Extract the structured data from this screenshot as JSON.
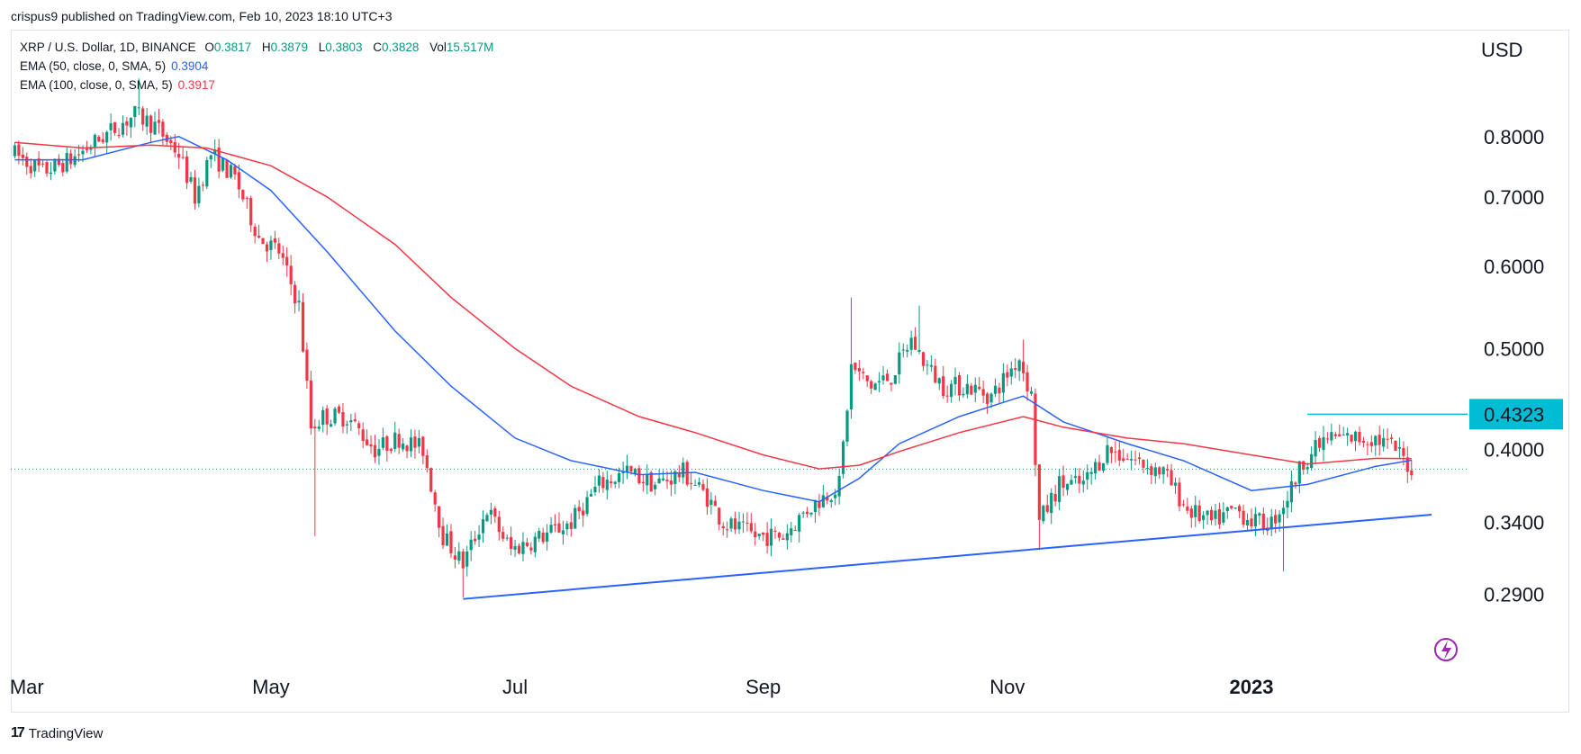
{
  "publisher_line": "crispus9 published on TradingView.com, Feb 10, 2023 18:10 UTC+3",
  "legend": {
    "symbol": "XRP / U.S. Dollar, 1D, BINANCE",
    "ohlc": [
      {
        "k": "O",
        "v": "0.3817"
      },
      {
        "k": "H",
        "v": "0.3879"
      },
      {
        "k": "L",
        "v": "0.3803"
      },
      {
        "k": "C",
        "v": "0.3828"
      },
      {
        "k": "Vol",
        "v": "15.517M"
      }
    ],
    "ema50_label": "EMA (50, close, 0, SMA, 5)",
    "ema50_value": "0.3904",
    "ema100_label": "EMA (100, close, 0, SMA, 5)",
    "ema100_value": "0.3917"
  },
  "axis_unit": "USD",
  "footer": {
    "logo_text": "TradingView",
    "logo_icon": "tradingview-logo-icon"
  },
  "colors": {
    "up": "#089981",
    "down": "#f23645",
    "ema50": "#2962ff",
    "ema100": "#f23645",
    "trendline": "#2962ff",
    "resistance": "#00bcd4",
    "price_tag": "#00bcd4"
  },
  "chart_data": {
    "type": "candlestick",
    "title": "XRP / U.S. Dollar, 1D, BINANCE",
    "scale": "log",
    "ylim": [
      0.245,
      1.0
    ],
    "xlim": [
      "2022-02-25",
      "2023-02-24"
    ],
    "y_ticks": [
      {
        "value": 0.8,
        "label": "0.8000"
      },
      {
        "value": 0.7,
        "label": "0.7000"
      },
      {
        "value": 0.6,
        "label": "0.6000"
      },
      {
        "value": 0.5,
        "label": "0.5000"
      },
      {
        "value": 0.4,
        "label": "0.4000"
      },
      {
        "value": 0.34,
        "label": "0.3400"
      },
      {
        "value": 0.29,
        "label": "0.2900"
      }
    ],
    "x_ticks": [
      {
        "date": "2022-03-01",
        "label": "Mar",
        "bold": false
      },
      {
        "date": "2022-05-01",
        "label": "May",
        "bold": false
      },
      {
        "date": "2022-07-01",
        "label": "Jul",
        "bold": false
      },
      {
        "date": "2022-09-01",
        "label": "Sep",
        "bold": false
      },
      {
        "date": "2022-11-01",
        "label": "Nov",
        "bold": false
      },
      {
        "date": "2023-01-01",
        "label": "2023",
        "bold": true
      }
    ],
    "last_price": 0.3828,
    "price_tag": {
      "value": 0.4323,
      "label": "0.4323"
    },
    "resistance_line": {
      "start": "2023-01-15",
      "end": "2023-02-24",
      "value": 0.4323
    },
    "trendline": {
      "start_date": "2022-06-18",
      "start_value": 0.287,
      "end_date": "2023-02-15",
      "end_value": 0.346
    },
    "price_path": [
      [
        "2022-02-26",
        0.77
      ],
      [
        "2022-03-05",
        0.74
      ],
      [
        "2022-03-12",
        0.76
      ],
      [
        "2022-03-20",
        0.8
      ],
      [
        "2022-03-28",
        0.84
      ],
      [
        "2022-04-02",
        0.82
      ],
      [
        "2022-04-08",
        0.77
      ],
      [
        "2022-04-12",
        0.7
      ],
      [
        "2022-04-16",
        0.77
      ],
      [
        "2022-04-22",
        0.73
      ],
      [
        "2022-04-28",
        0.64
      ],
      [
        "2022-05-03",
        0.62
      ],
      [
        "2022-05-08",
        0.55
      ],
      [
        "2022-05-11",
        0.42
      ],
      [
        "2022-05-14",
        0.43
      ],
      [
        "2022-05-20",
        0.43
      ],
      [
        "2022-05-27",
        0.4
      ],
      [
        "2022-06-02",
        0.41
      ],
      [
        "2022-06-08",
        0.4
      ],
      [
        "2022-06-13",
        0.33
      ],
      [
        "2022-06-18",
        0.31
      ],
      [
        "2022-06-24",
        0.35
      ],
      [
        "2022-06-30",
        0.32
      ],
      [
        "2022-07-08",
        0.33
      ],
      [
        "2022-07-15",
        0.34
      ],
      [
        "2022-07-22",
        0.37
      ],
      [
        "2022-07-29",
        0.38
      ],
      [
        "2022-08-05",
        0.37
      ],
      [
        "2022-08-12",
        0.38
      ],
      [
        "2022-08-18",
        0.36
      ],
      [
        "2022-08-22",
        0.34
      ],
      [
        "2022-08-30",
        0.33
      ],
      [
        "2022-09-06",
        0.33
      ],
      [
        "2022-09-12",
        0.35
      ],
      [
        "2022-09-20",
        0.37
      ],
      [
        "2022-09-23",
        0.48
      ],
      [
        "2022-09-28",
        0.46
      ],
      [
        "2022-10-03",
        0.47
      ],
      [
        "2022-10-08",
        0.51
      ],
      [
        "2022-10-12",
        0.48
      ],
      [
        "2022-10-16",
        0.46
      ],
      [
        "2022-10-22",
        0.46
      ],
      [
        "2022-10-28",
        0.45
      ],
      [
        "2022-11-04",
        0.49
      ],
      [
        "2022-11-07",
        0.45
      ],
      [
        "2022-11-09",
        0.34
      ],
      [
        "2022-11-14",
        0.37
      ],
      [
        "2022-11-20",
        0.37
      ],
      [
        "2022-11-26",
        0.4
      ],
      [
        "2022-12-03",
        0.39
      ],
      [
        "2022-12-10",
        0.38
      ],
      [
        "2022-12-16",
        0.35
      ],
      [
        "2022-12-22",
        0.34
      ],
      [
        "2022-12-28",
        0.35
      ],
      [
        "2023-01-02",
        0.34
      ],
      [
        "2023-01-06",
        0.34
      ],
      [
        "2023-01-10",
        0.36
      ],
      [
        "2023-01-14",
        0.39
      ],
      [
        "2023-01-20",
        0.41
      ],
      [
        "2023-01-26",
        0.41
      ],
      [
        "2023-02-01",
        0.41
      ],
      [
        "2023-02-06",
        0.4
      ],
      [
        "2023-02-10",
        0.383
      ]
    ],
    "series": [
      {
        "name": "EMA (50, close, 0, SMA, 5)",
        "points": [
          [
            "2022-02-26",
            0.76
          ],
          [
            "2022-03-15",
            0.76
          ],
          [
            "2022-04-01",
            0.79
          ],
          [
            "2022-04-08",
            0.8
          ],
          [
            "2022-04-20",
            0.76
          ],
          [
            "2022-05-01",
            0.71
          ],
          [
            "2022-05-15",
            0.62
          ],
          [
            "2022-06-01",
            0.52
          ],
          [
            "2022-06-15",
            0.46
          ],
          [
            "2022-07-01",
            0.41
          ],
          [
            "2022-07-15",
            0.39
          ],
          [
            "2022-08-01",
            0.378
          ],
          [
            "2022-08-15",
            0.38
          ],
          [
            "2022-09-01",
            0.365
          ],
          [
            "2022-09-15",
            0.356
          ],
          [
            "2022-09-25",
            0.375
          ],
          [
            "2022-10-05",
            0.405
          ],
          [
            "2022-10-20",
            0.43
          ],
          [
            "2022-11-01",
            0.445
          ],
          [
            "2022-11-05",
            0.45
          ],
          [
            "2022-11-15",
            0.425
          ],
          [
            "2022-12-01",
            0.405
          ],
          [
            "2022-12-15",
            0.39
          ],
          [
            "2023-01-01",
            0.365
          ],
          [
            "2023-01-15",
            0.37
          ],
          [
            "2023-02-01",
            0.385
          ],
          [
            "2023-02-10",
            0.3904
          ]
        ]
      },
      {
        "name": "EMA (100, close, 0, SMA, 5)",
        "points": [
          [
            "2022-02-26",
            0.79
          ],
          [
            "2022-03-15",
            0.78
          ],
          [
            "2022-04-01",
            0.785
          ],
          [
            "2022-04-15",
            0.78
          ],
          [
            "2022-05-01",
            0.75
          ],
          [
            "2022-05-15",
            0.7
          ],
          [
            "2022-06-01",
            0.63
          ],
          [
            "2022-06-15",
            0.56
          ],
          [
            "2022-07-01",
            0.5
          ],
          [
            "2022-07-15",
            0.46
          ],
          [
            "2022-08-01",
            0.43
          ],
          [
            "2022-08-15",
            0.415
          ],
          [
            "2022-09-01",
            0.395
          ],
          [
            "2022-09-15",
            0.383
          ],
          [
            "2022-09-25",
            0.386
          ],
          [
            "2022-10-05",
            0.398
          ],
          [
            "2022-10-20",
            0.415
          ],
          [
            "2022-11-05",
            0.43
          ],
          [
            "2022-11-15",
            0.42
          ],
          [
            "2022-12-01",
            0.41
          ],
          [
            "2022-12-15",
            0.405
          ],
          [
            "2023-01-01",
            0.395
          ],
          [
            "2023-01-15",
            0.387
          ],
          [
            "2023-02-01",
            0.392
          ],
          [
            "2023-02-10",
            0.3917
          ]
        ]
      }
    ]
  }
}
